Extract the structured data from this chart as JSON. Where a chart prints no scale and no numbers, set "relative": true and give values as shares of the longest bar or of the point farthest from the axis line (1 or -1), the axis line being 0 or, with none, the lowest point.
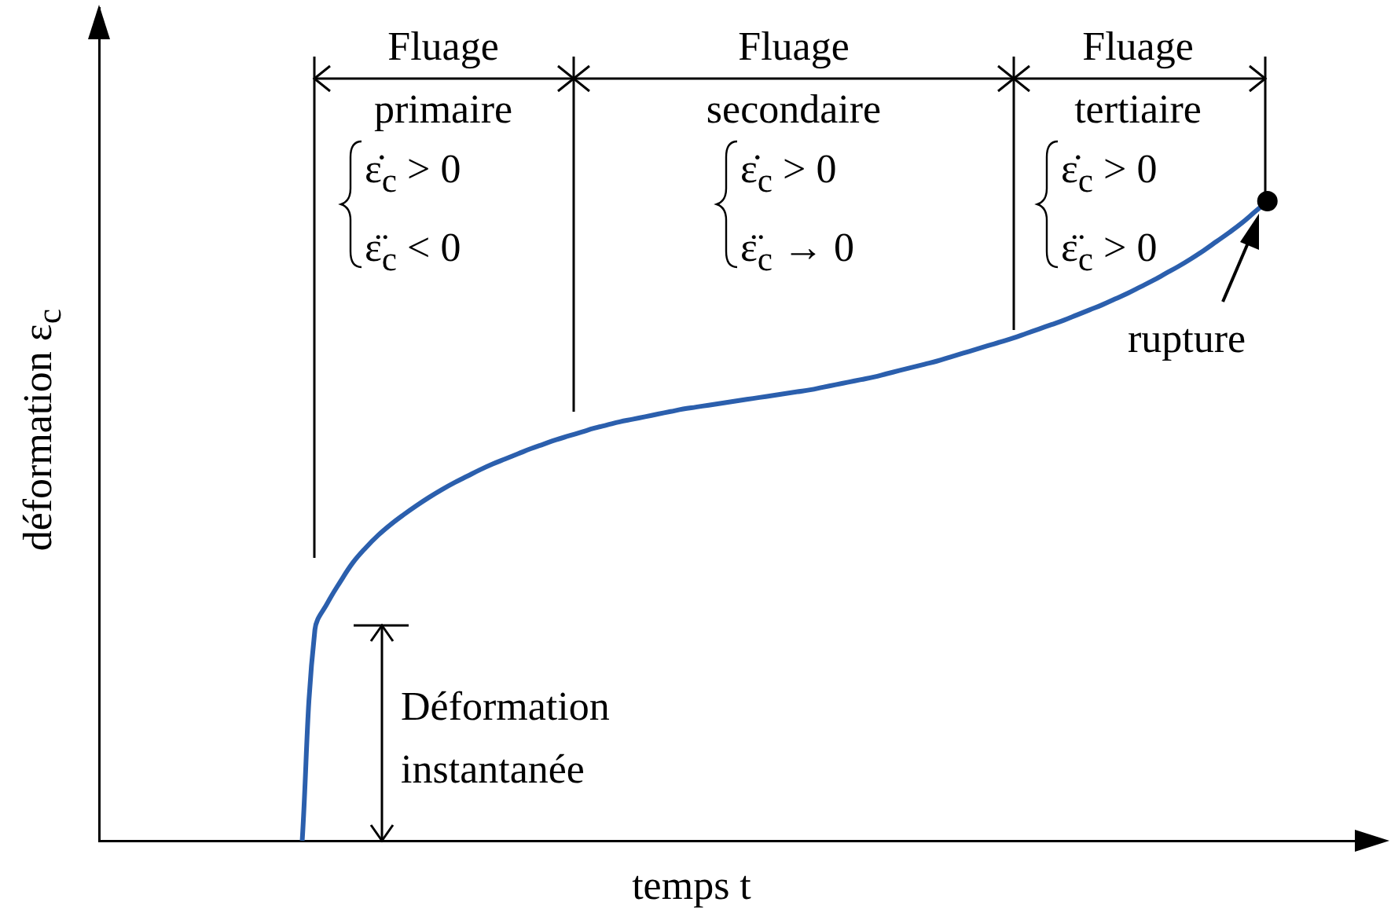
{
  "chart_data": {
    "type": "line",
    "relative": true,
    "xlabel": "temps t",
    "ylabel": "déformation ε$_{c}$",
    "categories": [
      null,
      null,
      null,
      null,
      null,
      null,
      null,
      null,
      null,
      null,
      null,
      null,
      null,
      null,
      null,
      null,
      null,
      null,
      null,
      null,
      null,
      null,
      null,
      null,
      null,
      null,
      null,
      null,
      null,
      null,
      null,
      null,
      null,
      null,
      null,
      null,
      null,
      null,
      null,
      null,
      null,
      null,
      null,
      null,
      null,
      null,
      null,
      null,
      null,
      null,
      null,
      null,
      null,
      null,
      null,
      null,
      null,
      null,
      null,
      null,
      null,
      null,
      null,
      null,
      null,
      null,
      null,
      null,
      null,
      null,
      null,
      null,
      null,
      null,
      null,
      null,
      null,
      null,
      null,
      null,
      null,
      null,
      null,
      null,
      null,
      null,
      null,
      null,
      null,
      null,
      null,
      null,
      null,
      null,
      null,
      null,
      null,
      null,
      null,
      null,
      null
    ],
    "series": [
      {
        "color": "#2b5fad",
        "values": [
          null,
          null,
          null,
          null,
          null,
          null,
          null,
          null,
          null,
          null,
          null,
          null,
          null,
          null,
          null,
          null,
          0,
          0.33,
          0.372,
          0.405,
          0.435,
          0.458,
          0.478,
          0.495,
          0.51,
          0.524,
          0.537,
          0.549,
          0.56,
          0.57,
          0.58,
          0.589,
          0.597,
          0.605,
          0.613,
          0.62,
          0.627,
          0.633,
          0.639,
          0.645,
          0.65,
          0.655,
          0.659,
          0.663,
          0.667,
          0.671,
          0.675,
          0.678,
          0.681,
          0.684,
          0.687,
          0.69,
          0.693,
          0.696,
          0.699,
          0.702,
          0.705,
          0.709,
          0.713,
          0.717,
          0.721,
          0.725,
          0.73,
          0.735,
          0.74,
          0.745,
          0.75,
          0.756,
          0.762,
          0.768,
          0.774,
          0.78,
          0.786,
          0.793,
          0.8,
          0.807,
          0.814,
          0.822,
          0.83,
          0.838,
          0.847,
          0.856,
          0.866,
          0.876,
          0.887,
          0.898,
          0.91,
          0.923,
          0.937,
          0.951,
          0.966,
          0.983,
          1,
          null,
          null,
          null,
          null,
          null,
          null,
          null,
          null
        ]
      }
    ],
    "annotations": [
      "Fluage primaire",
      "Fluage secondaire",
      "Fluage tertiaire",
      "ε̇$_{c}$ > 0",
      "ε̈$_{c}$ < 0",
      "ε̇$_{c}$ > 0",
      "ε̈$_{c}$ → 0",
      "ε̇$_{c}$ > 0",
      "ε̈$_{c}$ > 0",
      "rupture",
      "Déformation instantanée"
    ]
  }
}
